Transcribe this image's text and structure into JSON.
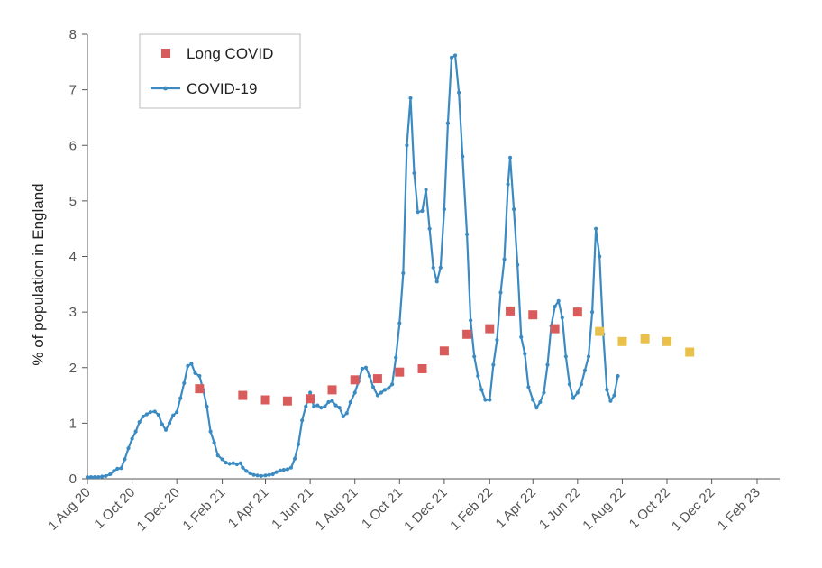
{
  "chart_data": {
    "type": "line",
    "title": "",
    "ylabel": "% of population in England",
    "xlabel": "",
    "ylim": [
      0,
      8
    ],
    "yticks": [
      0,
      1,
      2,
      3,
      4,
      5,
      6,
      7,
      8
    ],
    "x_range_months": [
      "2020-08",
      "2023-03"
    ],
    "x_ticks": [
      {
        "label": "1 Aug 20",
        "date": "2020-08-01"
      },
      {
        "label": "1 Oct 20",
        "date": "2020-10-01"
      },
      {
        "label": "1 Dec 20",
        "date": "2020-12-01"
      },
      {
        "label": "1 Feb 21",
        "date": "2021-02-01"
      },
      {
        "label": "1 Apr 21",
        "date": "2021-04-01"
      },
      {
        "label": "1 Jun 21",
        "date": "2021-06-01"
      },
      {
        "label": "1 Aug 21",
        "date": "2021-08-01"
      },
      {
        "label": "1 Oct 21",
        "date": "2021-10-01"
      },
      {
        "label": "1 Dec 21",
        "date": "2021-12-01"
      },
      {
        "label": "1 Feb 22",
        "date": "2022-02-01"
      },
      {
        "label": "1 Apr 22",
        "date": "2022-04-01"
      },
      {
        "label": "1 Jun 22",
        "date": "2022-06-01"
      },
      {
        "label": "1 Aug 22",
        "date": "2022-08-01"
      },
      {
        "label": "1 Oct 22",
        "date": "2022-10-01"
      },
      {
        "label": "1 Dec 22",
        "date": "2022-12-01"
      },
      {
        "label": "1 Feb 23",
        "date": "2023-02-01"
      }
    ],
    "legend": {
      "placement": "top-left",
      "entries": [
        {
          "name": "Long COVID",
          "marker": "square",
          "color": "#d95c5c"
        },
        {
          "name": "COVID-19",
          "marker": "line",
          "color": "#3b8bc2"
        }
      ]
    },
    "series": [
      {
        "name": "COVID-19",
        "color": "#3b8bc2",
        "points": [
          [
            "2020-08-01",
            0.03
          ],
          [
            "2020-08-06",
            0.03
          ],
          [
            "2020-08-11",
            0.03
          ],
          [
            "2020-08-16",
            0.03
          ],
          [
            "2020-08-21",
            0.04
          ],
          [
            "2020-08-26",
            0.05
          ],
          [
            "2020-09-01",
            0.08
          ],
          [
            "2020-09-06",
            0.14
          ],
          [
            "2020-09-11",
            0.18
          ],
          [
            "2020-09-16",
            0.19
          ],
          [
            "2020-09-21",
            0.35
          ],
          [
            "2020-09-26",
            0.55
          ],
          [
            "2020-10-01",
            0.72
          ],
          [
            "2020-10-06",
            0.85
          ],
          [
            "2020-10-11",
            1.02
          ],
          [
            "2020-10-16",
            1.12
          ],
          [
            "2020-10-21",
            1.16
          ],
          [
            "2020-10-26",
            1.2
          ],
          [
            "2020-11-01",
            1.21
          ],
          [
            "2020-11-06",
            1.15
          ],
          [
            "2020-11-11",
            0.98
          ],
          [
            "2020-11-16",
            0.88
          ],
          [
            "2020-11-21",
            1.0
          ],
          [
            "2020-11-26",
            1.14
          ],
          [
            "2020-12-01",
            1.2
          ],
          [
            "2020-12-06",
            1.45
          ],
          [
            "2020-12-11",
            1.72
          ],
          [
            "2020-12-16",
            2.03
          ],
          [
            "2020-12-21",
            2.07
          ],
          [
            "2020-12-26",
            1.9
          ],
          [
            "2021-01-01",
            1.85
          ],
          [
            "2021-01-06",
            1.6
          ],
          [
            "2021-01-11",
            1.3
          ],
          [
            "2021-01-16",
            0.85
          ],
          [
            "2021-01-21",
            0.65
          ],
          [
            "2021-01-26",
            0.42
          ],
          [
            "2021-02-01",
            0.35
          ],
          [
            "2021-02-06",
            0.29
          ],
          [
            "2021-02-11",
            0.27
          ],
          [
            "2021-02-16",
            0.28
          ],
          [
            "2021-02-21",
            0.26
          ],
          [
            "2021-02-26",
            0.28
          ],
          [
            "2021-03-01",
            0.2
          ],
          [
            "2021-03-06",
            0.14
          ],
          [
            "2021-03-11",
            0.1
          ],
          [
            "2021-03-16",
            0.07
          ],
          [
            "2021-03-21",
            0.06
          ],
          [
            "2021-03-26",
            0.05
          ],
          [
            "2021-04-01",
            0.06
          ],
          [
            "2021-04-06",
            0.07
          ],
          [
            "2021-04-11",
            0.08
          ],
          [
            "2021-04-16",
            0.12
          ],
          [
            "2021-04-21",
            0.15
          ],
          [
            "2021-04-26",
            0.16
          ],
          [
            "2021-05-01",
            0.17
          ],
          [
            "2021-05-06",
            0.2
          ],
          [
            "2021-05-11",
            0.36
          ],
          [
            "2021-05-16",
            0.62
          ],
          [
            "2021-05-21",
            1.05
          ],
          [
            "2021-05-26",
            1.3
          ],
          [
            "2021-06-01",
            1.55
          ],
          [
            "2021-06-06",
            1.3
          ],
          [
            "2021-06-11",
            1.32
          ],
          [
            "2021-06-16",
            1.28
          ],
          [
            "2021-06-21",
            1.3
          ],
          [
            "2021-06-26",
            1.38
          ],
          [
            "2021-07-01",
            1.4
          ],
          [
            "2021-07-06",
            1.32
          ],
          [
            "2021-07-11",
            1.28
          ],
          [
            "2021-07-16",
            1.12
          ],
          [
            "2021-07-21",
            1.18
          ],
          [
            "2021-07-26",
            1.38
          ],
          [
            "2021-08-01",
            1.55
          ],
          [
            "2021-08-06",
            1.75
          ],
          [
            "2021-08-11",
            1.98
          ],
          [
            "2021-08-16",
            2.0
          ],
          [
            "2021-08-21",
            1.85
          ],
          [
            "2021-08-26",
            1.65
          ],
          [
            "2021-09-01",
            1.5
          ],
          [
            "2021-09-06",
            1.55
          ],
          [
            "2021-09-11",
            1.6
          ],
          [
            "2021-09-16",
            1.63
          ],
          [
            "2021-09-21",
            1.7
          ],
          [
            "2021-09-26",
            2.18
          ],
          [
            "2021-10-01",
            2.8
          ],
          [
            "2021-10-06",
            3.7
          ],
          [
            "2021-10-11",
            6.0
          ],
          [
            "2021-10-16",
            6.85
          ],
          [
            "2021-10-21",
            5.5
          ],
          [
            "2021-10-26",
            4.8
          ],
          [
            "2021-11-01",
            4.82
          ],
          [
            "2021-11-06",
            5.2
          ],
          [
            "2021-11-11",
            4.5
          ],
          [
            "2021-11-16",
            3.8
          ],
          [
            "2021-11-21",
            3.55
          ],
          [
            "2021-11-26",
            3.8
          ],
          [
            "2021-12-01",
            4.85
          ],
          [
            "2021-12-06",
            6.4
          ],
          [
            "2021-12-11",
            7.58
          ],
          [
            "2021-12-16",
            7.62
          ],
          [
            "2021-12-21",
            6.95
          ],
          [
            "2021-12-26",
            5.8
          ],
          [
            "2022-01-01",
            4.4
          ],
          [
            "2022-01-06",
            2.85
          ],
          [
            "2022-01-11",
            2.2
          ],
          [
            "2022-01-16",
            1.85
          ],
          [
            "2022-01-21",
            1.6
          ],
          [
            "2022-01-26",
            1.42
          ],
          [
            "2022-02-01",
            1.42
          ],
          [
            "2022-02-06",
            2.05
          ],
          [
            "2022-02-11",
            2.5
          ],
          [
            "2022-02-16",
            3.35
          ],
          [
            "2022-02-21",
            3.95
          ],
          [
            "2022-02-26",
            5.3
          ],
          [
            "2022-03-01",
            5.78
          ],
          [
            "2022-03-06",
            4.85
          ],
          [
            "2022-03-11",
            3.85
          ],
          [
            "2022-03-16",
            2.55
          ],
          [
            "2022-03-21",
            2.25
          ],
          [
            "2022-03-26",
            1.65
          ],
          [
            "2022-04-01",
            1.42
          ],
          [
            "2022-04-06",
            1.28
          ],
          [
            "2022-04-11",
            1.38
          ],
          [
            "2022-04-16",
            1.55
          ],
          [
            "2022-04-21",
            2.05
          ],
          [
            "2022-04-26",
            2.75
          ],
          [
            "2022-05-01",
            3.1
          ],
          [
            "2022-05-06",
            3.2
          ],
          [
            "2022-05-11",
            2.9
          ],
          [
            "2022-05-16",
            2.2
          ],
          [
            "2022-05-21",
            1.7
          ],
          [
            "2022-05-26",
            1.45
          ],
          [
            "2022-06-01",
            1.55
          ],
          [
            "2022-06-06",
            1.7
          ],
          [
            "2022-06-11",
            1.95
          ],
          [
            "2022-06-16",
            2.2
          ],
          [
            "2022-06-21",
            3.0
          ],
          [
            "2022-06-26",
            4.5
          ],
          [
            "2022-07-01",
            4.0
          ],
          [
            "2022-07-06",
            2.6
          ],
          [
            "2022-07-11",
            1.6
          ],
          [
            "2022-07-16",
            1.4
          ],
          [
            "2022-07-21",
            1.5
          ],
          [
            "2022-07-26",
            1.85
          ]
        ]
      },
      {
        "name": "Long COVID",
        "color": "#d95c5c",
        "alt_color": "#e8c04a",
        "points": [
          [
            "2021-01-01",
            1.62,
            "red"
          ],
          [
            "2021-03-01",
            1.5,
            "red"
          ],
          [
            "2021-04-01",
            1.42,
            "red"
          ],
          [
            "2021-05-01",
            1.4,
            "red"
          ],
          [
            "2021-06-01",
            1.44,
            "red"
          ],
          [
            "2021-07-01",
            1.6,
            "red"
          ],
          [
            "2021-08-01",
            1.78,
            "red"
          ],
          [
            "2021-09-01",
            1.8,
            "red"
          ],
          [
            "2021-10-01",
            1.92,
            "red"
          ],
          [
            "2021-11-01",
            1.98,
            "red"
          ],
          [
            "2021-12-01",
            2.3,
            "red"
          ],
          [
            "2022-01-01",
            2.6,
            "red"
          ],
          [
            "2022-02-01",
            2.7,
            "red"
          ],
          [
            "2022-03-01",
            3.02,
            "red"
          ],
          [
            "2022-04-01",
            2.95,
            "red"
          ],
          [
            "2022-05-01",
            2.7,
            "red"
          ],
          [
            "2022-06-01",
            3.0,
            "red"
          ],
          [
            "2022-07-01",
            2.65,
            "yellow"
          ],
          [
            "2022-08-01",
            2.47,
            "yellow"
          ],
          [
            "2022-09-01",
            2.52,
            "yellow"
          ],
          [
            "2022-10-01",
            2.47,
            "yellow"
          ],
          [
            "2022-11-01",
            2.28,
            "yellow"
          ]
        ]
      }
    ],
    "grid": false
  }
}
